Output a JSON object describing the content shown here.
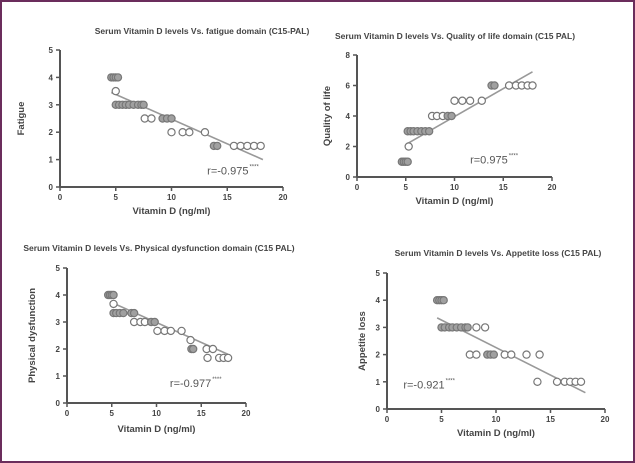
{
  "chart_data": [
    {
      "type": "scatter",
      "title": "Serum Vitamin D levels Vs. fatigue domain (C15-PAL)",
      "xlabel": "Vitamin D (ng/ml)",
      "ylabel": "Fatigue",
      "xlim": [
        0,
        20
      ],
      "ylim": [
        0,
        5
      ],
      "xticks": [
        "0",
        "5",
        "10",
        "15",
        "20"
      ],
      "yticks": [
        "0",
        "1",
        "2",
        "3",
        "4",
        "5"
      ],
      "annotation": "r=-0.975",
      "significance": "****",
      "trend": [
        [
          4.6,
          3.45
        ],
        [
          18.2,
          1.0
        ]
      ],
      "points": [
        [
          4.6,
          4
        ],
        [
          4.8,
          4
        ],
        [
          5.0,
          4
        ],
        [
          5.2,
          4
        ],
        [
          5.0,
          3.5
        ],
        [
          5.0,
          3
        ],
        [
          5.3,
          3
        ],
        [
          5.6,
          3
        ],
        [
          5.9,
          3
        ],
        [
          6.2,
          3
        ],
        [
          6.6,
          3
        ],
        [
          7.0,
          3
        ],
        [
          7.3,
          3
        ],
        [
          7.5,
          3
        ],
        [
          7.6,
          2.5
        ],
        [
          8.2,
          2.5
        ],
        [
          9.2,
          2.5
        ],
        [
          9.6,
          2.5
        ],
        [
          10.0,
          2.5
        ],
        [
          10.0,
          2
        ],
        [
          11.0,
          2
        ],
        [
          11.6,
          2
        ],
        [
          13.0,
          2
        ],
        [
          13.8,
          1.5
        ],
        [
          14.1,
          1.5
        ],
        [
          15.6,
          1.5
        ],
        [
          16.2,
          1.5
        ],
        [
          16.8,
          1.5
        ],
        [
          17.4,
          1.5
        ],
        [
          18.0,
          1.5
        ]
      ]
    },
    {
      "type": "scatter",
      "title": "Serum Vitamin D levels Vs. Quality of life domain (C15 PAL)",
      "xlabel": "Vitamin D (ng/ml)",
      "ylabel": "Quality of life",
      "xlim": [
        0,
        20
      ],
      "ylim": [
        0,
        8
      ],
      "xticks": [
        "0",
        "5",
        "10",
        "15",
        "20"
      ],
      "yticks": [
        "0",
        "2",
        "4",
        "6",
        "8"
      ],
      "annotation": "r=0.975",
      "significance": "****",
      "trend": [
        [
          5.2,
          2.2
        ],
        [
          18.0,
          6.9
        ]
      ],
      "points": [
        [
          4.6,
          1
        ],
        [
          4.8,
          1
        ],
        [
          5.0,
          1
        ],
        [
          5.2,
          1
        ],
        [
          5.3,
          2
        ],
        [
          5.2,
          3
        ],
        [
          5.5,
          3
        ],
        [
          5.8,
          3
        ],
        [
          6.2,
          3
        ],
        [
          6.6,
          3
        ],
        [
          7.0,
          3
        ],
        [
          7.4,
          3
        ],
        [
          7.7,
          4
        ],
        [
          8.2,
          4
        ],
        [
          8.8,
          4
        ],
        [
          9.3,
          4
        ],
        [
          9.7,
          4
        ],
        [
          10.0,
          5
        ],
        [
          10.8,
          5
        ],
        [
          11.6,
          5
        ],
        [
          12.8,
          5
        ],
        [
          13.8,
          6
        ],
        [
          14.1,
          6
        ],
        [
          15.6,
          6
        ],
        [
          16.3,
          6
        ],
        [
          16.9,
          6
        ],
        [
          17.5,
          6
        ],
        [
          18.0,
          6
        ]
      ]
    },
    {
      "type": "scatter",
      "title": "Serum Vitamin D levels Vs. Physical dysfunction domain (C15 PAL)",
      "xlabel": "Vitamin D (ng/ml)",
      "ylabel": "Physical dysfunction",
      "xlim": [
        0,
        20
      ],
      "ylim": [
        0,
        5
      ],
      "xticks": [
        "0",
        "5",
        "10",
        "15",
        "20"
      ],
      "yticks": [
        "0",
        "1",
        "2",
        "3",
        "4",
        "5"
      ],
      "annotation": "r=-0.977",
      "significance": "****",
      "trend": [
        [
          4.8,
          3.75
        ],
        [
          18.0,
          1.8
        ]
      ],
      "points": [
        [
          4.6,
          4
        ],
        [
          4.8,
          4
        ],
        [
          5.0,
          4
        ],
        [
          5.2,
          4
        ],
        [
          5.2,
          3.67
        ],
        [
          5.2,
          3.33
        ],
        [
          5.5,
          3.33
        ],
        [
          5.9,
          3.33
        ],
        [
          6.3,
          3.33
        ],
        [
          7.2,
          3.33
        ],
        [
          7.5,
          3.33
        ],
        [
          7.5,
          3
        ],
        [
          8.2,
          3
        ],
        [
          8.7,
          3
        ],
        [
          9.4,
          3
        ],
        [
          9.8,
          3
        ],
        [
          10.1,
          2.67
        ],
        [
          10.9,
          2.67
        ],
        [
          11.6,
          2.67
        ],
        [
          12.8,
          2.67
        ],
        [
          13.8,
          2.33
        ],
        [
          13.9,
          2
        ],
        [
          14.1,
          2
        ],
        [
          15.6,
          2
        ],
        [
          16.3,
          2
        ],
        [
          15.7,
          1.67
        ],
        [
          17.0,
          1.67
        ],
        [
          17.5,
          1.67
        ],
        [
          18.0,
          1.67
        ]
      ]
    },
    {
      "type": "scatter",
      "title": "Serum Vitamin D levels Vs. Appetite loss (C15 PAL)",
      "xlabel": "Vitamin D (ng/ml)",
      "ylabel": "Appetite loss",
      "xlim": [
        0,
        20
      ],
      "ylim": [
        0,
        5
      ],
      "xticks": [
        "0",
        "5",
        "10",
        "15",
        "20"
      ],
      "yticks": [
        "0",
        "1",
        "2",
        "3",
        "4",
        "5"
      ],
      "annotation": "r=-0.921",
      "significance": "****",
      "trend": [
        [
          4.6,
          3.35
        ],
        [
          18.2,
          0.6
        ]
      ],
      "points": [
        [
          4.6,
          4
        ],
        [
          4.8,
          4
        ],
        [
          5.0,
          4
        ],
        [
          5.2,
          4
        ],
        [
          5.0,
          3
        ],
        [
          5.3,
          3
        ],
        [
          5.7,
          3
        ],
        [
          6.0,
          3
        ],
        [
          6.4,
          3
        ],
        [
          6.8,
          3
        ],
        [
          7.2,
          3
        ],
        [
          7.4,
          3
        ],
        [
          8.2,
          3
        ],
        [
          9.0,
          3
        ],
        [
          7.6,
          2
        ],
        [
          8.2,
          2
        ],
        [
          9.2,
          2
        ],
        [
          9.5,
          2
        ],
        [
          9.8,
          2
        ],
        [
          10.8,
          2
        ],
        [
          11.4,
          2
        ],
        [
          12.8,
          2
        ],
        [
          14.0,
          2
        ],
        [
          13.8,
          1
        ],
        [
          15.6,
          1
        ],
        [
          16.3,
          1
        ],
        [
          16.8,
          1
        ],
        [
          17.3,
          1
        ],
        [
          17.8,
          1
        ]
      ]
    }
  ]
}
